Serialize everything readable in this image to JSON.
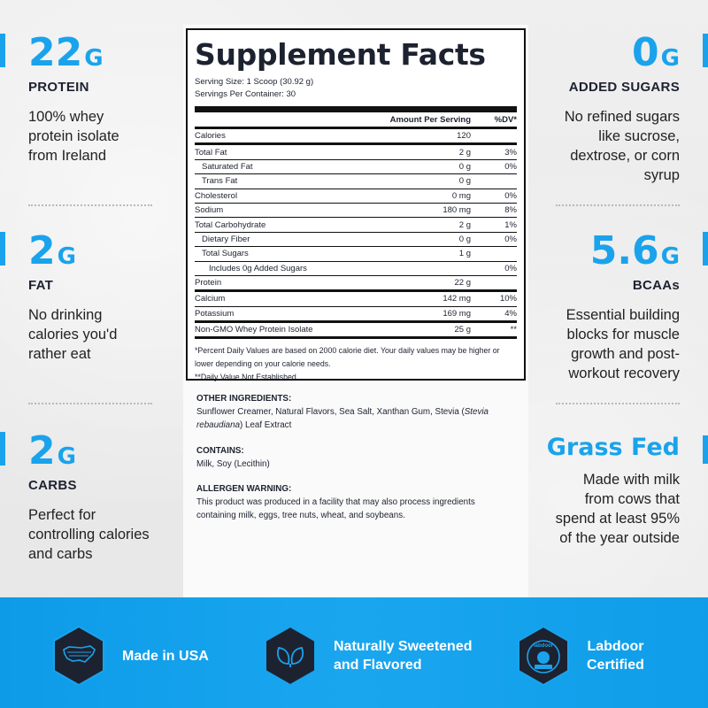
{
  "left_stats": [
    {
      "value": "22",
      "unit": "G",
      "label": "PROTEIN",
      "desc": [
        "100% whey",
        "protein isolate",
        "from Ireland"
      ]
    },
    {
      "value": "2",
      "unit": "G",
      "label": "FAT",
      "desc": [
        "No drinking",
        "calories you'd",
        "rather eat"
      ]
    },
    {
      "value": "2",
      "unit": "G",
      "label": "CARBS",
      "desc": [
        "Perfect for",
        "controlling calories",
        "and carbs"
      ]
    }
  ],
  "right_stats": [
    {
      "value": "0",
      "unit": "G",
      "label": "ADDED SUGARS",
      "desc": [
        "No refined sugars",
        "like sucrose,",
        "dextrose, or corn",
        "syrup"
      ]
    },
    {
      "value": "5.6",
      "unit": "G",
      "label": "BCAAs",
      "desc": [
        "Essential building",
        "blocks for muscle",
        "growth and post-",
        "workout recovery"
      ]
    },
    {
      "value": "Grass Fed",
      "unit": "",
      "label": "",
      "desc": [
        "Made with milk",
        "from cows that",
        "spend at least 95%",
        "of the year outside"
      ]
    }
  ],
  "facts": {
    "title": "Supplement Facts",
    "serving_size": "Serving Size: 1 Scoop (30.92 g)",
    "servings_per_container": "Servings Per Container: 30",
    "header_amount": "Amount Per Serving",
    "header_dv": "%DV*",
    "rows": [
      {
        "name": "Calories",
        "amount": "120",
        "dv": "",
        "indent": 0,
        "thick": true
      },
      {
        "name": "Total Fat",
        "amount": "2 g",
        "dv": "3%",
        "indent": 0
      },
      {
        "name": "Saturated Fat",
        "amount": "0 g",
        "dv": "0%",
        "indent": 1
      },
      {
        "name": "Trans Fat",
        "amount": "0 g",
        "dv": "",
        "indent": 1
      },
      {
        "name": "Cholesterol",
        "amount": "0 mg",
        "dv": "0%",
        "indent": 0
      },
      {
        "name": "Sodium",
        "amount": "180 mg",
        "dv": "8%",
        "indent": 0
      },
      {
        "name": "Total Carbohydrate",
        "amount": "2 g",
        "dv": "1%",
        "indent": 0
      },
      {
        "name": "Dietary Fiber",
        "amount": "0 g",
        "dv": "0%",
        "indent": 1
      },
      {
        "name": "Total Sugars",
        "amount": "1 g",
        "dv": "",
        "indent": 1
      },
      {
        "name": "Includes 0g Added Sugars",
        "amount": "",
        "dv": "0%",
        "indent": 2
      },
      {
        "name": "Protein",
        "amount": "22 g",
        "dv": "",
        "indent": 0,
        "thick": true
      },
      {
        "name": "Calcium",
        "amount": "142 mg",
        "dv": "10%",
        "indent": 0
      },
      {
        "name": "Potassium",
        "amount": "169 mg",
        "dv": "4%",
        "indent": 0,
        "thick": true
      },
      {
        "name": "Non-GMO Whey Protein Isolate",
        "amount": "25 g",
        "dv": "**",
        "indent": 0,
        "thick": true
      }
    ],
    "footnote_1": "*Percent Daily Values are based on 2000 calorie diet. Your daily values may be higher or lower depending on your calorie needs.",
    "footnote_2": "**Daily Value Not Established"
  },
  "other_ingredients": {
    "heading": "OTHER INGREDIENTS:",
    "text_a": "Sunflower Creamer, Natural Flavors, Sea Salt, Xanthan Gum, Stevia (",
    "text_italic": "Stevia rebaudiana",
    "text_b": ") Leaf Extract"
  },
  "contains": {
    "heading": "CONTAINS:",
    "text": "Milk, Soy (Lecithin)"
  },
  "allergen": {
    "heading": "ALLERGEN WARNING:",
    "text": "This product was produced in a facility that may also process ingredients containing milk, eggs, tree nuts, wheat, and soybeans."
  },
  "badges": [
    {
      "icon": "usa-map-icon",
      "lines": [
        "Made in USA"
      ]
    },
    {
      "icon": "leaf-icon",
      "lines": [
        "Naturally Sweetened",
        "and Flavored"
      ]
    },
    {
      "icon": "labdoor-seal-icon",
      "lines": [
        "Labdoor",
        "Certified"
      ],
      "seal_text": "labdoor"
    }
  ],
  "colors": {
    "accent": "#1aa3ec",
    "dark": "#1d2230",
    "band": "#139fea"
  }
}
